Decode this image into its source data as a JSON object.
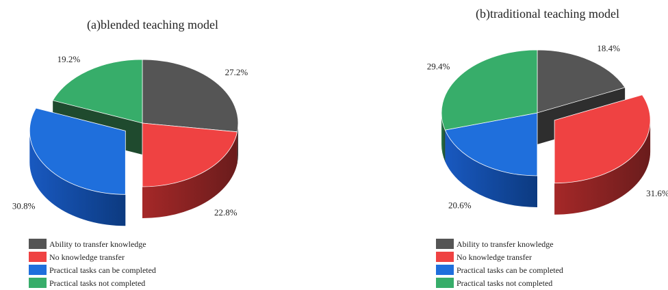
{
  "colors": {
    "transfer": "#555555",
    "no_transfer": "#ef4242",
    "can_complete": "#1f6fdc",
    "not_completed": "#37ad6a"
  },
  "chart_data": [
    {
      "type": "pie",
      "title": "(a)blended teaching model",
      "labels": [
        "Ability to transfer knowledge",
        "No knowledge transfer",
        "Practical tasks can be completed",
        "Practical tasks not completed"
      ],
      "values": [
        27.2,
        22.8,
        30.8,
        19.2
      ],
      "value_labels": [
        "27.2%",
        "22.8%",
        "30.8%",
        "19.2%"
      ],
      "exploded": [
        false,
        false,
        true,
        false
      ],
      "style": "3d",
      "legend_position": "bottom-left"
    },
    {
      "type": "pie",
      "title": "(b)traditional teaching model",
      "labels": [
        "Ability to transfer knowledge",
        "No knowledge transfer",
        "Practical tasks can be completed",
        "Practical tasks not completed"
      ],
      "values": [
        18.4,
        31.6,
        20.6,
        29.4
      ],
      "value_labels": [
        "18.4%",
        "31.6%",
        "20.6%",
        "29.4%"
      ],
      "exploded": [
        false,
        true,
        false,
        false
      ],
      "style": "3d",
      "legend_position": "bottom-left"
    }
  ]
}
